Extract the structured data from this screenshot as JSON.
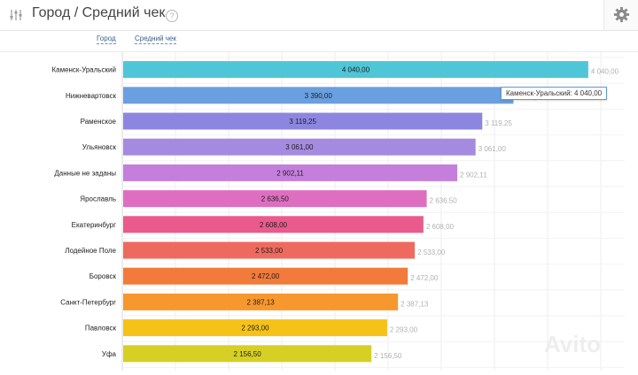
{
  "header": {
    "title": "Город / Средний чек",
    "help_icon": "question-icon",
    "filter_icon": "sliders-icon",
    "settings_icon": "gear-icon"
  },
  "tabs": [
    {
      "label": "Город"
    },
    {
      "label": "Средний чек"
    }
  ],
  "tooltip": {
    "text": "Каменск-Уральский: 4 040,00"
  },
  "watermark": {
    "text": "Avito"
  },
  "chart_data": {
    "type": "bar",
    "orientation": "horizontal",
    "categories": [
      "Каменск-Уральский",
      "Нижневартовск",
      "Раменское",
      "Ульяновск",
      "Данные не заданы",
      "Ярославль",
      "Екатеринбург",
      "Лодейное Поле",
      "Боровск",
      "Санкт-Петербург",
      "Павловск",
      "Уфа"
    ],
    "values": [
      4040.0,
      3390.0,
      3119.25,
      3061.0,
      2902.11,
      2636.5,
      2608.0,
      2533.0,
      2472.0,
      2387.13,
      2293.0,
      2156.5
    ],
    "value_labels": [
      "4 040,00",
      "3 390,00",
      "3 119,25",
      "3 061,00",
      "2 902,11",
      "2 636,50",
      "2 608,00",
      "2 533,00",
      "2 472,00",
      "2 387,13",
      "2 293,00",
      "2 156,50"
    ],
    "colors": [
      "#4fc6d8",
      "#6a9fe0",
      "#8d86e0",
      "#a58be0",
      "#c47fdc",
      "#de6fc0",
      "#ea5a8c",
      "#ef6a5e",
      "#f27a3a",
      "#f7982e",
      "#f6c218",
      "#d6cf24"
    ],
    "xlim": [
      0,
      4200
    ],
    "grid": true
  }
}
